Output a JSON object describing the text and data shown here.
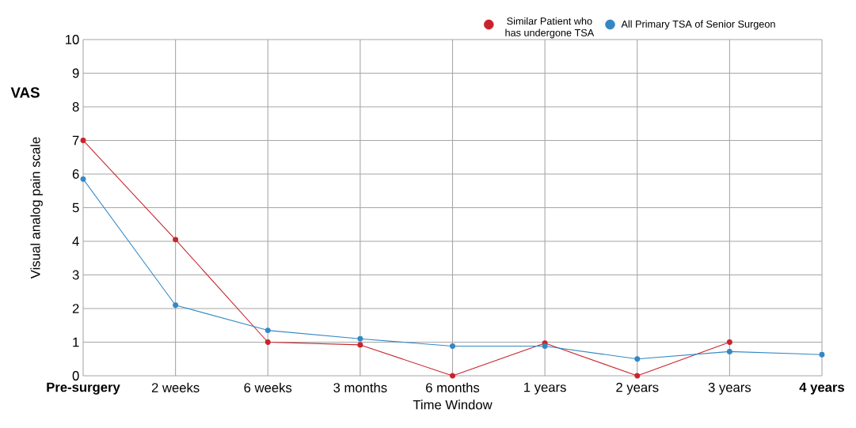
{
  "chart_data": {
    "type": "line",
    "xlabel": "Time Window",
    "ylabel": "Visual analog pain scale",
    "annotations": [
      "VAS"
    ],
    "categories": [
      "Pre-surgery",
      "2 weeks",
      "6 weeks",
      "3 months",
      "6 months",
      "1 years",
      "2 years",
      "3 years",
      "4 years"
    ],
    "series": [
      {
        "name": "Similar Patient who has undergone TSA",
        "color": "#c8232c",
        "values": [
          7.0,
          4.05,
          1.0,
          0.92,
          0.0,
          0.97,
          0.0,
          1.0,
          null
        ]
      },
      {
        "name": "All Primary TSA of Senior Surgeon",
        "color": "#3388c4",
        "values": [
          5.85,
          2.1,
          1.35,
          1.1,
          0.88,
          0.88,
          0.5,
          0.72,
          0.63
        ]
      }
    ],
    "ylim": [
      0,
      10
    ],
    "yticks": [
      0,
      1,
      2,
      3,
      4,
      5,
      6,
      7,
      8,
      9,
      10
    ],
    "grid": true,
    "legend": "top right",
    "marker": "circle",
    "line_style": "solid"
  }
}
